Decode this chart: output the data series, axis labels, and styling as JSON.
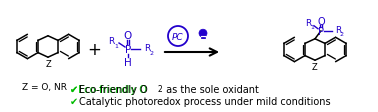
{
  "bg_color": "#ffffff",
  "mol_color": "#000000",
  "phosphine_color": "#2200cc",
  "arrow_color": "#000000",
  "check_color": "#00bb00",
  "z_label": "Z = O, NR",
  "bullet1a": "✔Eco-friendly O",
  "bullet1b": "2",
  "bullet1c": " as the sole oxidant",
  "bullet2": "✔Catalytic photoredox process under mild conditions",
  "pc_label": "PC",
  "plus_sign": "+",
  "figsize": [
    3.78,
    1.13
  ],
  "dpi": 100
}
